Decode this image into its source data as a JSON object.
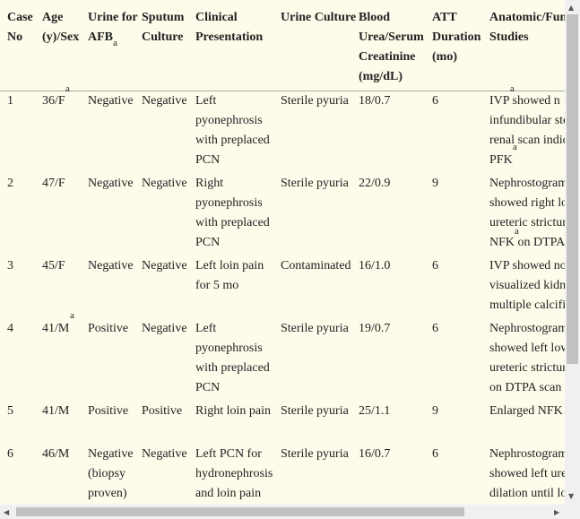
{
  "table": {
    "footnote_mark": "a",
    "header": [
      "Case No",
      "Age (y)/Sex",
      "Urine for AFB",
      "Sputum Culture",
      "Clinical Presentation",
      "Urine Culture",
      "Blood Urea/Serum Creatinine (mg/dL)",
      "ATT Duration (mo)",
      "Anatomic/Fun\nStudies"
    ],
    "rows": [
      [
        "1",
        "36/F",
        "Negative",
        "Negative",
        "Left pyonephrosis with preplaced PCN",
        "Sterile pyuria",
        "18/0.7",
        "6",
        "IVP  showed n\ninfundibular ste\nrenal scan indic\nPFK"
      ],
      [
        "2",
        "47/F",
        "Negative",
        "Negative",
        "Right pyonephrosis with preplaced PCN",
        "Sterile pyuria",
        "22/0.9",
        "9",
        "Nephrostogram\nshowed right lo\nureteric strictur\nNFK  on DTPA"
      ],
      [
        "3",
        "45/F",
        "Negative",
        "Negative",
        "Left loin pain for 5 mo",
        "Contaminated",
        "16/1.0",
        "6",
        "IVP showed no\nvisualized kidn\nmultiple calcifi"
      ],
      [
        "4",
        "41/M",
        "Positive",
        "Negative",
        "Left pyonephrosis with preplaced PCN",
        "Sterile pyuria",
        "19/0.7",
        "6",
        "Nephrostogram\nshowed left low\nureteric strictur\non DTPA scan"
      ],
      [
        "5",
        "41/M",
        "Positive",
        "Positive",
        "Right loin pain",
        "Sterile pyuria",
        "25/1.1",
        "9",
        "Enlarged NFK"
      ],
      [
        "6",
        "46/M",
        "Negative (biopsy proven)",
        "Negative",
        "Left PCN for hydronephrosis and loin pain",
        "Sterile pyuria",
        "16/0.7",
        "6",
        "Nephrostogram\nshowed left ure\ndilation until lo"
      ]
    ]
  }
}
